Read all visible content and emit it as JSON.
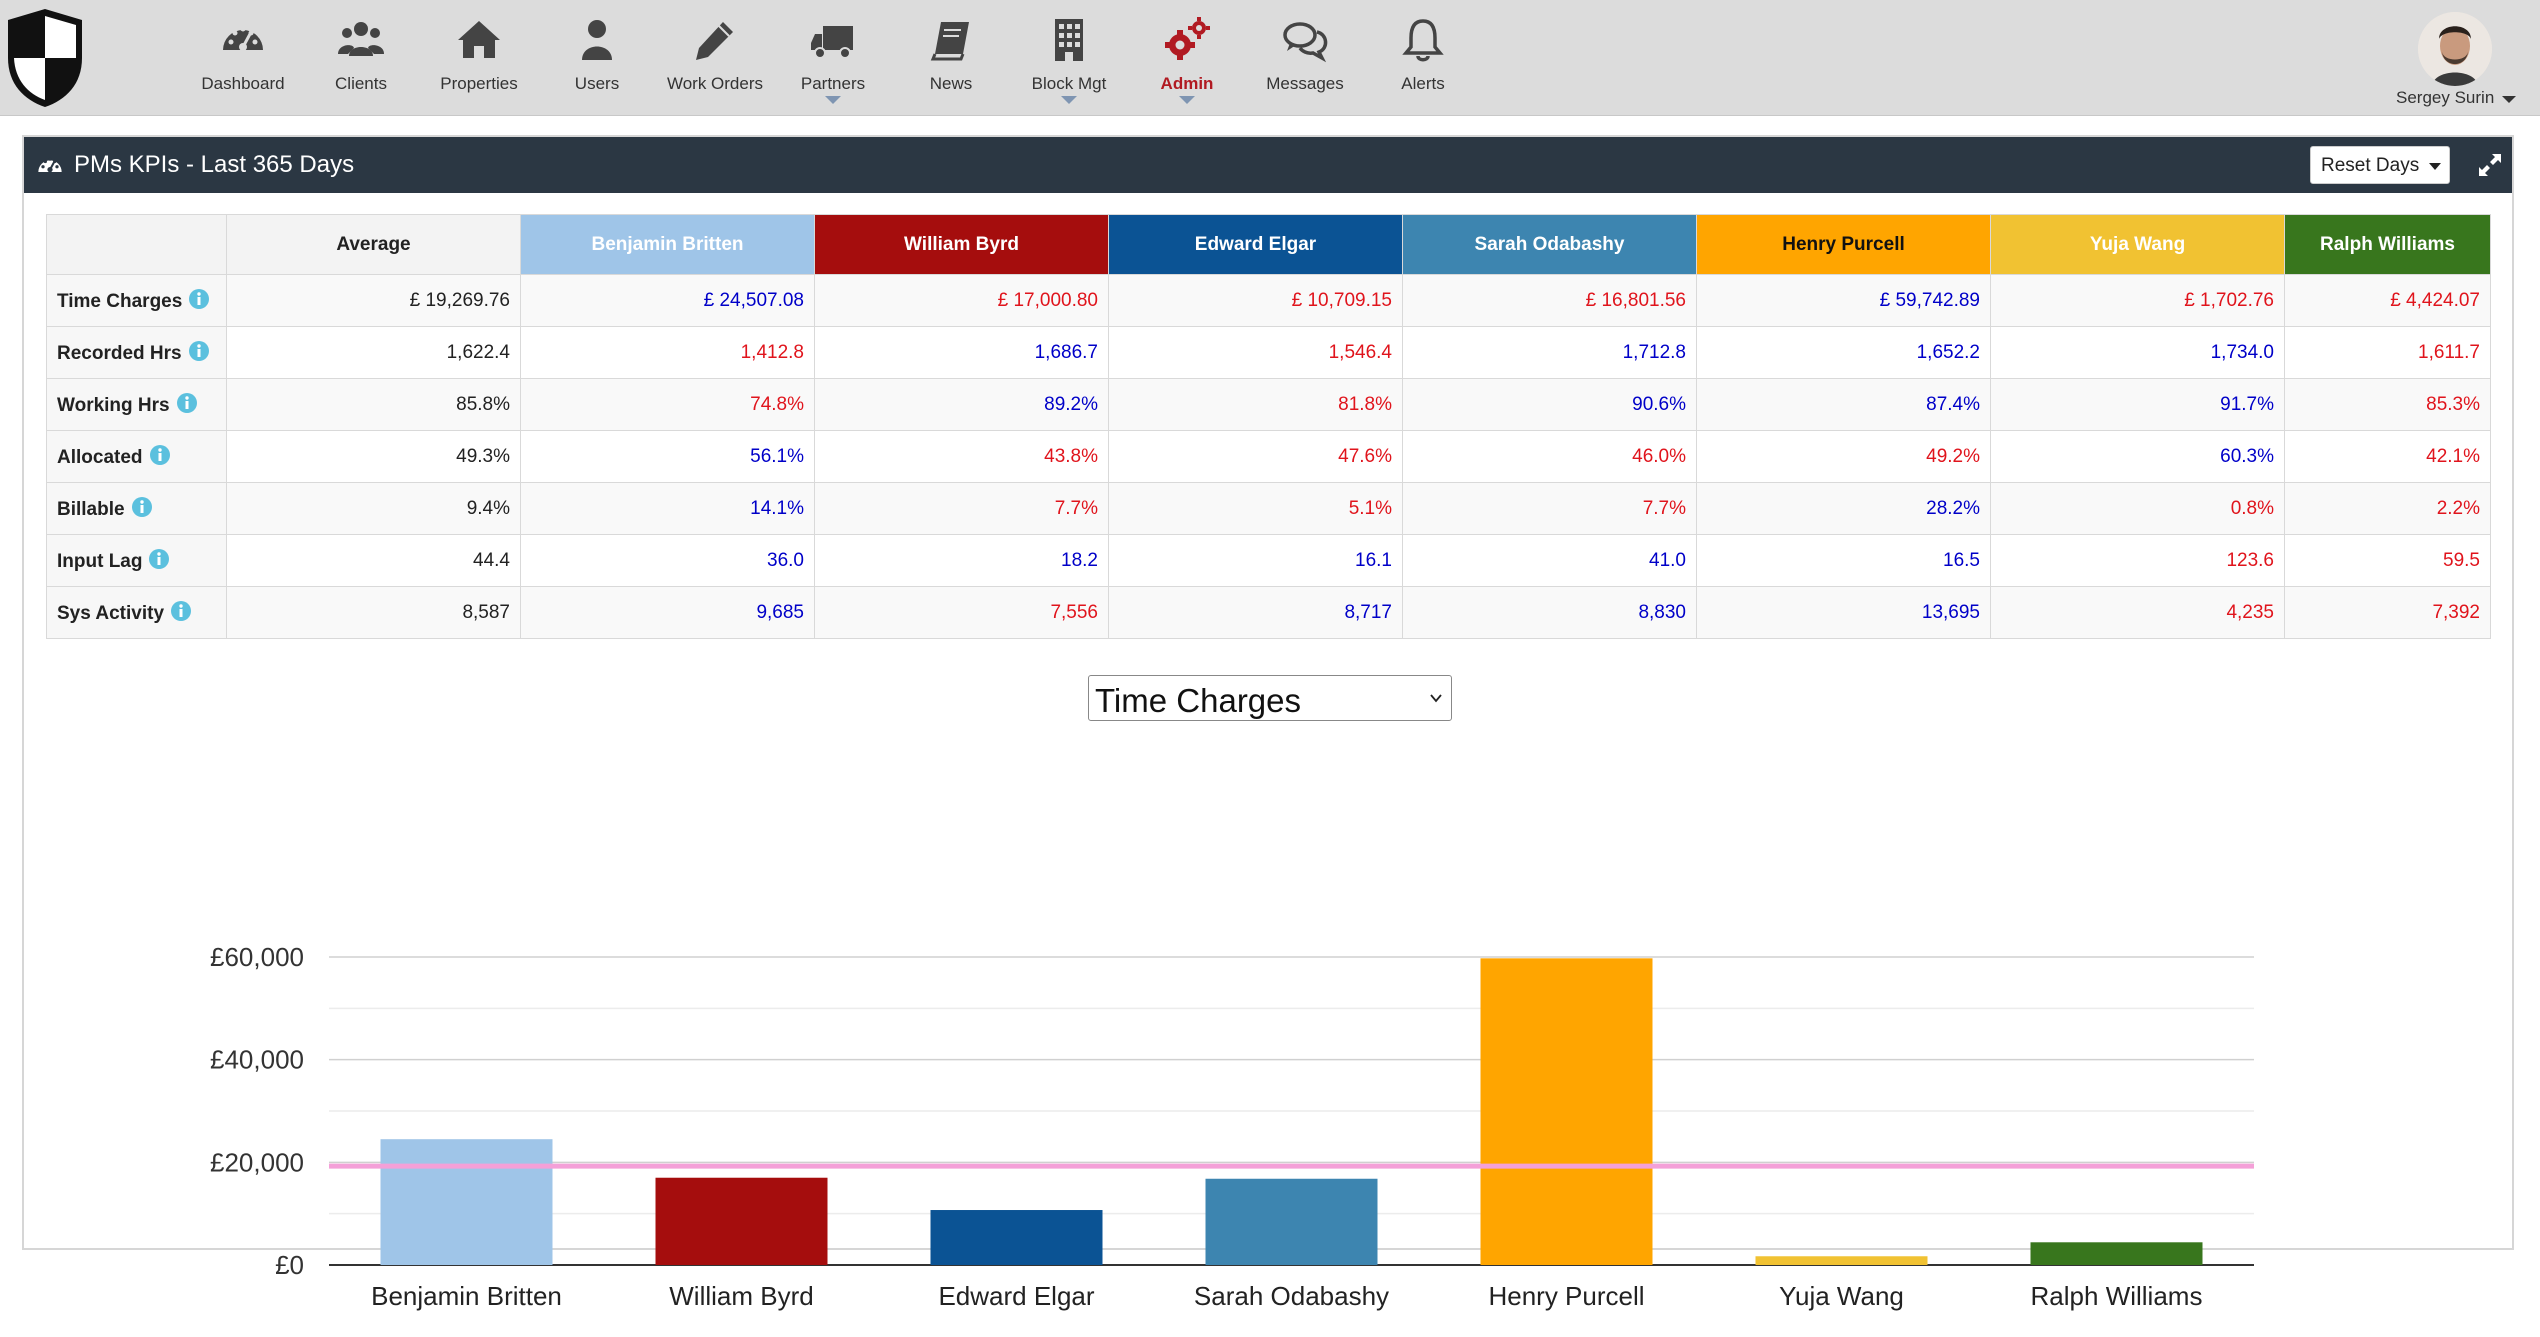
{
  "nav": {
    "items": [
      {
        "label": "Dashboard"
      },
      {
        "label": "Clients"
      },
      {
        "label": "Properties"
      },
      {
        "label": "Users"
      },
      {
        "label": "Work Orders"
      },
      {
        "label": "Partners"
      },
      {
        "label": "News"
      },
      {
        "label": "Block Mgt"
      },
      {
        "label": "Admin"
      },
      {
        "label": "Messages"
      },
      {
        "label": "Alerts"
      }
    ],
    "active": "Admin"
  },
  "user": {
    "name": "Sergey Surin"
  },
  "panel": {
    "title": "PMs KPIs - Last 365 Days",
    "reset_label": "Reset Days"
  },
  "table": {
    "average_label": "Average",
    "columns": [
      {
        "name": "Benjamin Britten",
        "color": "#9fc5e8",
        "text": "#ffffff"
      },
      {
        "name": "William Byrd",
        "color": "#a50d0d",
        "text": "#ffffff"
      },
      {
        "name": "Edward Elgar",
        "color": "#0b5394",
        "text": "#ffffff"
      },
      {
        "name": "Sarah Odabashy",
        "color": "#3d85b0",
        "text": "#ffffff"
      },
      {
        "name": "Henry Purcell",
        "color": "#ffa500",
        "text": "#111111"
      },
      {
        "name": "Yuja Wang",
        "color": "#f1c232",
        "text": "#ffffff"
      },
      {
        "name": "Ralph Williams",
        "color": "#38761d",
        "text": "#ffffff"
      }
    ],
    "rows": [
      {
        "label": "Time Charges",
        "average": "£ 19,269.76",
        "values": [
          "£ 24,507.08",
          "£ 17,000.80",
          "£ 10,709.15",
          "£ 16,801.56",
          "£ 59,742.89",
          "£ 1,702.76",
          "£ 4,424.07"
        ],
        "status": [
          "good",
          "bad",
          "bad",
          "bad",
          "good",
          "bad",
          "bad"
        ]
      },
      {
        "label": "Recorded Hrs",
        "average": "1,622.4",
        "values": [
          "1,412.8",
          "1,686.7",
          "1,546.4",
          "1,712.8",
          "1,652.2",
          "1,734.0",
          "1,611.7"
        ],
        "status": [
          "bad",
          "good",
          "bad",
          "good",
          "good",
          "good",
          "bad"
        ]
      },
      {
        "label": "Working Hrs",
        "average": "85.8%",
        "values": [
          "74.8%",
          "89.2%",
          "81.8%",
          "90.6%",
          "87.4%",
          "91.7%",
          "85.3%"
        ],
        "status": [
          "bad",
          "good",
          "bad",
          "good",
          "good",
          "good",
          "bad"
        ]
      },
      {
        "label": "Allocated",
        "average": "49.3%",
        "values": [
          "56.1%",
          "43.8%",
          "47.6%",
          "46.0%",
          "49.2%",
          "60.3%",
          "42.1%"
        ],
        "status": [
          "good",
          "bad",
          "bad",
          "bad",
          "bad",
          "good",
          "bad"
        ]
      },
      {
        "label": "Billable",
        "average": "9.4%",
        "values": [
          "14.1%",
          "7.7%",
          "5.1%",
          "7.7%",
          "28.2%",
          "0.8%",
          "2.2%"
        ],
        "status": [
          "good",
          "bad",
          "bad",
          "bad",
          "good",
          "bad",
          "bad"
        ]
      },
      {
        "label": "Input Lag",
        "average": "44.4",
        "values": [
          "36.0",
          "18.2",
          "16.1",
          "41.0",
          "16.5",
          "123.6",
          "59.5"
        ],
        "status": [
          "good",
          "good",
          "good",
          "good",
          "good",
          "bad",
          "bad"
        ]
      },
      {
        "label": "Sys Activity",
        "average": "8,587",
        "values": [
          "9,685",
          "7,556",
          "8,717",
          "8,830",
          "13,695",
          "4,235",
          "7,392"
        ],
        "status": [
          "good",
          "bad",
          "good",
          "good",
          "good",
          "bad",
          "bad"
        ]
      }
    ]
  },
  "select": {
    "value": "Time Charges"
  },
  "colors": {
    "good": "#0000c8",
    "bad": "#e0141c",
    "average_line": "#f4a0d8",
    "header": "#2b3743"
  },
  "chart_data": {
    "type": "bar",
    "categories": [
      "Benjamin Britten",
      "William Byrd",
      "Edward Elgar",
      "Sarah Odabashy",
      "Henry Purcell",
      "Yuja Wang",
      "Ralph Williams"
    ],
    "values": [
      24507.08,
      17000.8,
      10709.15,
      16801.56,
      59742.89,
      1702.76,
      4424.07
    ],
    "colors": [
      "#9fc5e8",
      "#a50d0d",
      "#0b5394",
      "#3d85b0",
      "#ffa500",
      "#f1c232",
      "#38761d"
    ],
    "average": 19269.76,
    "ylim": [
      0,
      60000
    ],
    "yticks": [
      0,
      20000,
      40000,
      60000
    ],
    "ytick_labels": [
      "£0",
      "£20,000",
      "£40,000",
      "£60,000"
    ],
    "grid": true
  }
}
